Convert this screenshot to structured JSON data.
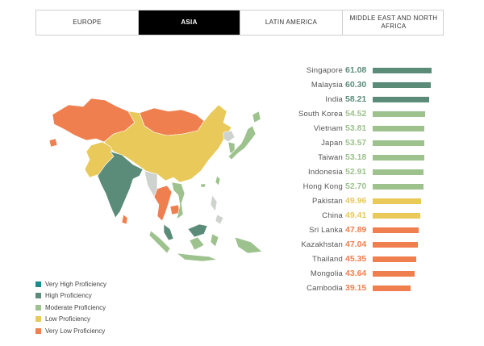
{
  "tabs": [
    {
      "label": "EUROPE",
      "active": false
    },
    {
      "label": "ASIA",
      "active": true
    },
    {
      "label": "LATIN AMERICA",
      "active": false
    },
    {
      "label": "MIDDLE EAST AND NORTH AFRICA",
      "active": false
    }
  ],
  "colors": {
    "very_high": "#1a8d8d",
    "high": "#5b8c7a",
    "moderate": "#9dc28e",
    "low": "#e8c95a",
    "very_low": "#ef7f4e"
  },
  "ranking": [
    {
      "country": "Singapore",
      "score": "61.08",
      "value": 61.08,
      "level": "high"
    },
    {
      "country": "Malaysia",
      "score": "60.30",
      "value": 60.3,
      "level": "high"
    },
    {
      "country": "India",
      "score": "58.21",
      "value": 58.21,
      "level": "high"
    },
    {
      "country": "South Korea",
      "score": "54.52",
      "value": 54.52,
      "level": "moderate"
    },
    {
      "country": "Vietnam",
      "score": "53.81",
      "value": 53.81,
      "level": "moderate"
    },
    {
      "country": "Japan",
      "score": "53.57",
      "value": 53.57,
      "level": "moderate"
    },
    {
      "country": "Taiwan",
      "score": "53.18",
      "value": 53.18,
      "level": "moderate"
    },
    {
      "country": "Indonesia",
      "score": "52.91",
      "value": 52.91,
      "level": "moderate"
    },
    {
      "country": "Hong Kong",
      "score": "52.70",
      "value": 52.7,
      "level": "moderate"
    },
    {
      "country": "Pakistan",
      "score": "49.96",
      "value": 49.96,
      "level": "low"
    },
    {
      "country": "China",
      "score": "49.41",
      "value": 49.41,
      "level": "low"
    },
    {
      "country": "Sri Lanka",
      "score": "47.89",
      "value": 47.89,
      "level": "very_low"
    },
    {
      "country": "Kazakhstan",
      "score": "47.04",
      "value": 47.04,
      "level": "very_low"
    },
    {
      "country": "Thailand",
      "score": "45.35",
      "value": 45.35,
      "level": "very_low"
    },
    {
      "country": "Mongolia",
      "score": "43.64",
      "value": 43.64,
      "level": "very_low"
    },
    {
      "country": "Cambodia",
      "score": "39.15",
      "value": 39.15,
      "level": "very_low"
    }
  ],
  "legend": [
    {
      "label": "Very High Proficiency",
      "level": "very_high"
    },
    {
      "label": "High Proficiency",
      "level": "high"
    },
    {
      "label": "Moderate Proficiency",
      "level": "moderate"
    },
    {
      "label": "Low Proficiency",
      "level": "low"
    },
    {
      "label": "Very Low Proficiency",
      "level": "very_low"
    }
  ]
}
